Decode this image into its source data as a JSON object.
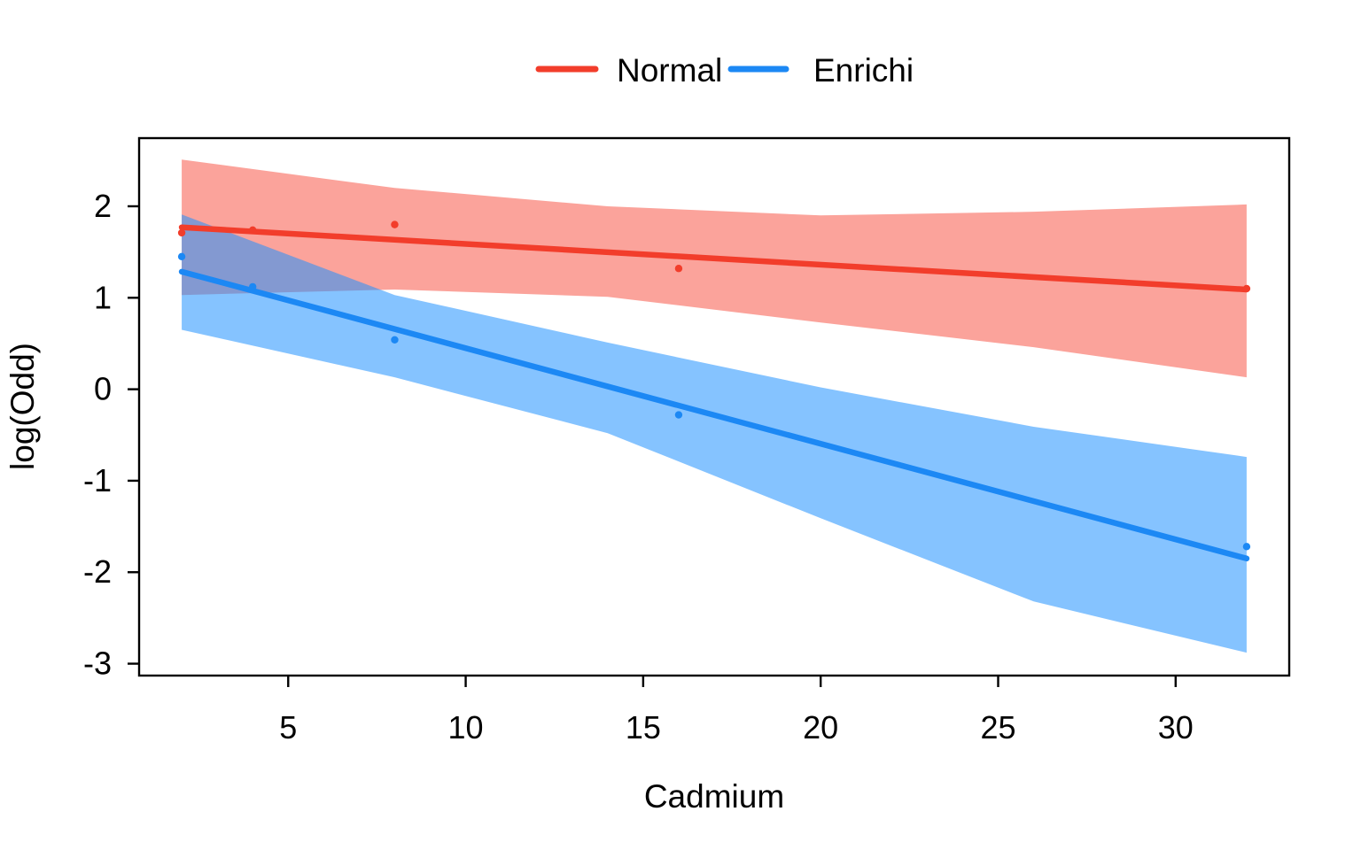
{
  "chart_data": {
    "type": "line",
    "title": "",
    "xlabel": "Cadmium",
    "ylabel": "log(Odd)",
    "xlim": [
      0.8,
      33.2
    ],
    "ylim": [
      -3.13,
      2.745
    ],
    "x_ticks": [
      5,
      10,
      15,
      20,
      25,
      30
    ],
    "y_ticks": [
      -3,
      -2,
      -1,
      0,
      1,
      2
    ],
    "grid": false,
    "legend_position": "top-center",
    "background": "#ffffff",
    "axis_color": "#000000",
    "series": [
      {
        "name": "Normal",
        "color": "#F23D2B",
        "band_color": "#FBA39B",
        "line": {
          "x": [
            2,
            32
          ],
          "y": [
            1.77,
            1.09
          ]
        },
        "points": {
          "x": [
            2,
            4,
            8,
            16,
            32
          ],
          "y": [
            1.71,
            1.74,
            1.8,
            1.32,
            1.1
          ]
        },
        "band": {
          "x": [
            2,
            8,
            14,
            20,
            26,
            32
          ],
          "lo": [
            1.03,
            1.09,
            1.01,
            0.73,
            0.46,
            0.13
          ],
          "hi": [
            2.51,
            2.2,
            2.0,
            1.9,
            1.94,
            2.02
          ]
        }
      },
      {
        "name": "Enrichi",
        "color": "#1C88F4",
        "band_color": "rgba(30,144,255,0.54)",
        "line": {
          "x": [
            2,
            32
          ],
          "y": [
            1.285,
            -1.85
          ]
        },
        "points": {
          "x": [
            2,
            4,
            8,
            16,
            32
          ],
          "y": [
            1.45,
            1.12,
            0.54,
            -0.28,
            -1.72
          ]
        },
        "band": {
          "x": [
            2,
            8,
            14,
            20,
            26,
            32
          ],
          "lo": [
            0.65,
            0.13,
            -0.48,
            -1.41,
            -2.32,
            -2.88
          ],
          "hi": [
            1.91,
            1.03,
            0.51,
            0.02,
            -0.41,
            -0.74
          ]
        }
      }
    ]
  }
}
